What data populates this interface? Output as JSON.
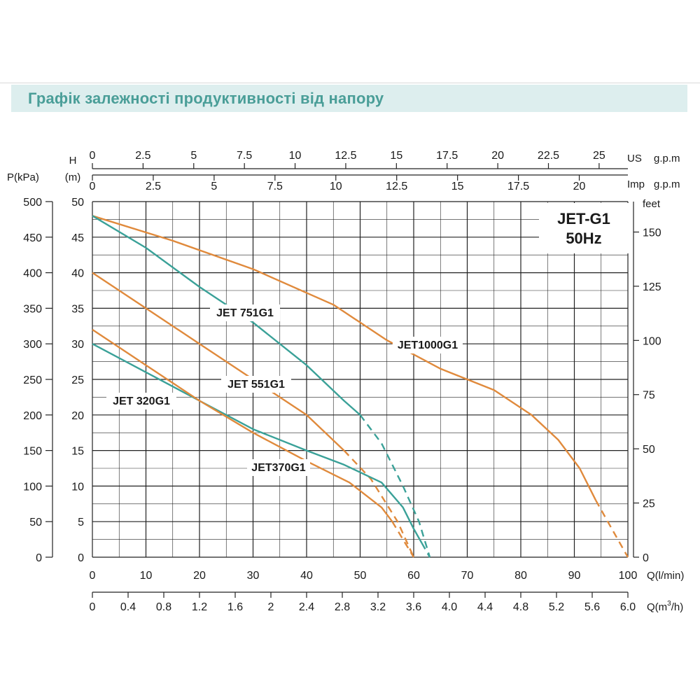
{
  "page": {
    "title": "Графік залежності продуктивності від напору"
  },
  "chart_data": {
    "type": "line",
    "model_box": {
      "line1": "JET-G1",
      "line2": "50Hz"
    },
    "colors": {
      "orange": "#e08a3c",
      "teal": "#3aa198"
    },
    "axes": {
      "q_lmin": {
        "label": "Q(l/min)",
        "range": [
          0,
          100
        ],
        "ticks": [
          "0",
          "10",
          "20",
          "30",
          "40",
          "50",
          "60",
          "70",
          "80",
          "90",
          "100"
        ]
      },
      "q_m3h": {
        "label": "Q(m³/h)",
        "label_main": "Q(m",
        "label_sup": "3",
        "label_end": "/h)",
        "range": [
          0,
          6.0
        ],
        "ticks": [
          "0",
          "0.4",
          "0.8",
          "1.2",
          "1.6",
          "2",
          "2.4",
          "2.8",
          "3.2",
          "3.6",
          "4.0",
          "4.4",
          "4.8",
          "5.2",
          "5.6",
          "6.0"
        ]
      },
      "us_gpm": {
        "label_a": "US",
        "label_b": "g.p.m",
        "range": [
          0,
          26.42
        ],
        "ticks": [
          "0",
          "2.5",
          "5",
          "7.5",
          "10",
          "12.5",
          "15",
          "17.5",
          "20",
          "22.5",
          "25"
        ]
      },
      "imp_gpm": {
        "label_a": "Imp",
        "label_b": "g.p.m",
        "range": [
          0,
          22.0
        ],
        "ticks": [
          "0",
          "2.5",
          "5",
          "7.5",
          "10",
          "12.5",
          "15",
          "17.5",
          "20"
        ]
      },
      "h_m": {
        "label_top": "H",
        "label_bottom": "(m)",
        "range": [
          0,
          50
        ],
        "ticks": [
          "0",
          "5",
          "10",
          "15",
          "20",
          "25",
          "30",
          "35",
          "40",
          "45",
          "50"
        ]
      },
      "p_kpa": {
        "label": "P(kPa)",
        "range": [
          0,
          500
        ],
        "ticks": [
          "0",
          "50",
          "100",
          "150",
          "200",
          "250",
          "300",
          "350",
          "400",
          "450",
          "500"
        ]
      },
      "feet": {
        "label": "feet",
        "range": [
          0,
          164
        ],
        "ticks": [
          "0",
          "25",
          "50",
          "75",
          "100",
          "125",
          "150"
        ]
      }
    },
    "grid": true,
    "series": [
      {
        "name": "JET1000G1",
        "color": "orange",
        "solid": [
          [
            0,
            48
          ],
          [
            15,
            44.5
          ],
          [
            30,
            40.5
          ],
          [
            45,
            35.5
          ],
          [
            55,
            30.5
          ],
          [
            65,
            26.5
          ],
          [
            75,
            23.5
          ],
          [
            82,
            20
          ],
          [
            87,
            16.5
          ],
          [
            91,
            12.5
          ],
          [
            94,
            8
          ]
        ],
        "dashed": [
          [
            94,
            8
          ],
          [
            97,
            4
          ],
          [
            100,
            0
          ]
        ]
      },
      {
        "name": "JET 751G1",
        "color": "teal",
        "solid": [
          [
            0,
            48
          ],
          [
            10,
            43.5
          ],
          [
            20,
            38
          ],
          [
            30,
            33
          ],
          [
            40,
            27
          ],
          [
            47,
            22
          ],
          [
            50,
            20
          ]
        ],
        "dashed": [
          [
            50,
            20
          ],
          [
            54,
            16
          ],
          [
            58,
            10
          ],
          [
            61,
            5
          ],
          [
            63,
            0
          ]
        ]
      },
      {
        "name": "JET 551G1",
        "color": "orange",
        "solid": [
          [
            0,
            40
          ],
          [
            10,
            35
          ],
          [
            20,
            30
          ],
          [
            30,
            25
          ],
          [
            40,
            20
          ],
          [
            47,
            15
          ]
        ],
        "dashed": [
          [
            47,
            15
          ],
          [
            52,
            11
          ],
          [
            57,
            5
          ],
          [
            60,
            0
          ]
        ]
      },
      {
        "name": "JET 320G1",
        "color": "teal",
        "solid": [
          [
            0,
            30
          ],
          [
            10,
            26
          ],
          [
            20,
            22
          ],
          [
            30,
            18
          ],
          [
            40,
            15
          ],
          [
            47,
            13
          ],
          [
            54,
            10.5
          ],
          [
            58,
            7
          ],
          [
            60,
            4
          ],
          [
            61.5,
            2
          ]
        ],
        "dashed": [
          [
            61.5,
            2
          ],
          [
            63,
            0
          ]
        ]
      },
      {
        "name": "JET370G1",
        "color": "orange",
        "solid": [
          [
            0,
            32
          ],
          [
            10,
            27
          ],
          [
            20,
            22
          ],
          [
            30,
            17.5
          ],
          [
            40,
            13.5
          ],
          [
            48,
            10.5
          ],
          [
            54,
            7
          ],
          [
            56,
            5
          ]
        ],
        "dashed": [
          [
            56,
            5
          ],
          [
            58,
            2.5
          ],
          [
            60,
            0
          ]
        ]
      }
    ]
  }
}
